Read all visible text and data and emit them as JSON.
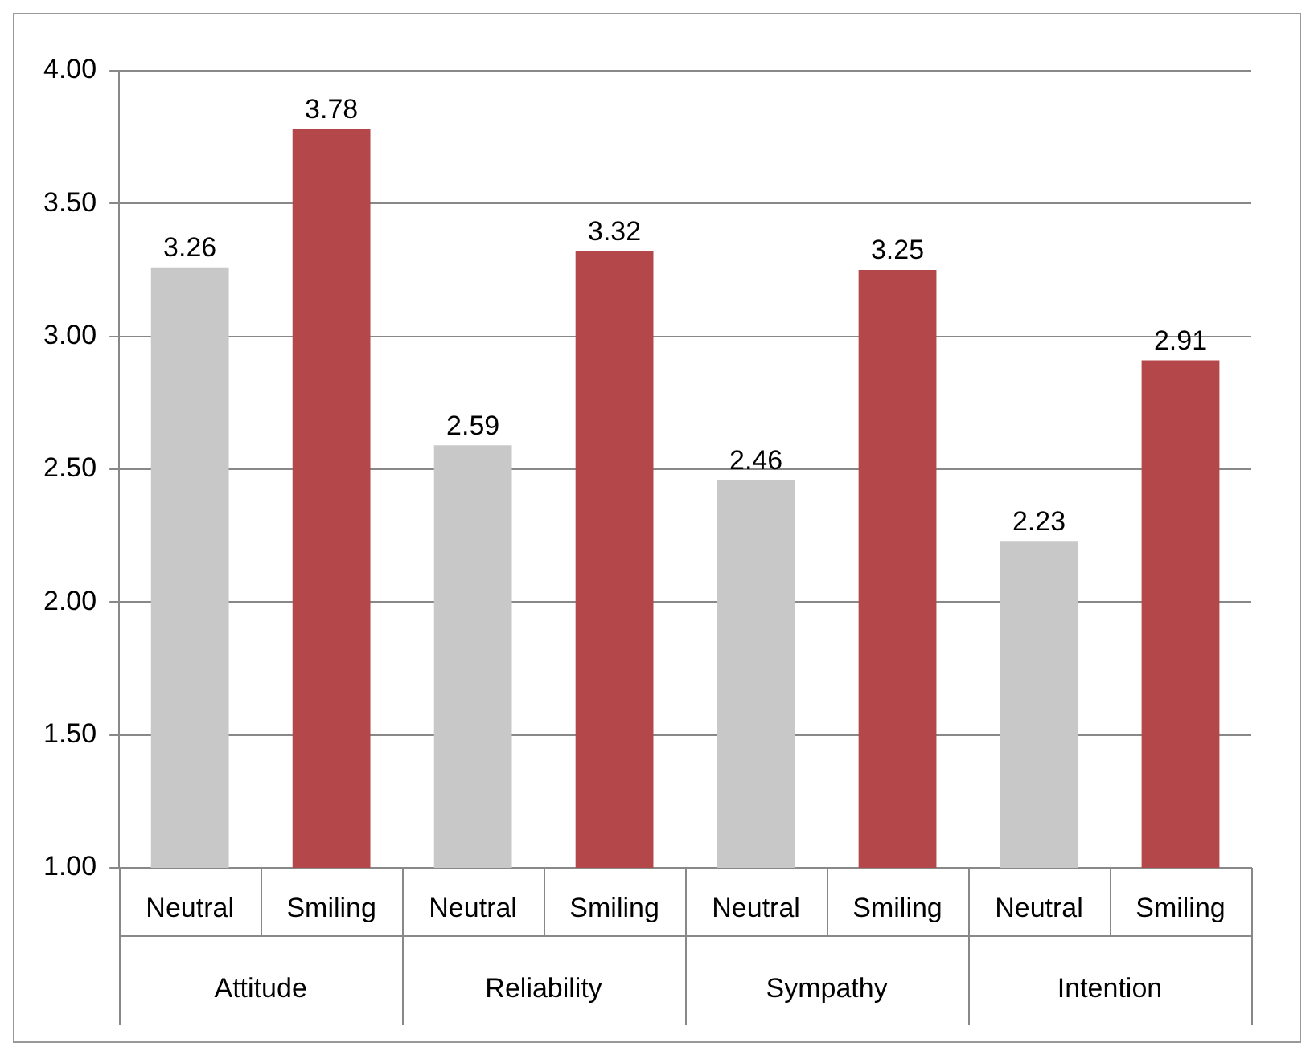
{
  "chart_data": {
    "type": "bar",
    "categories": [
      "Attitude",
      "Reliability",
      "Sympathy",
      "Intention"
    ],
    "series": [
      {
        "name": "Neutral",
        "color": "#c8c8c8",
        "values": [
          3.26,
          2.59,
          2.46,
          2.23
        ]
      },
      {
        "name": "Smiling",
        "color": "#b4474a",
        "values": [
          3.78,
          3.32,
          3.25,
          2.91
        ]
      }
    ],
    "ylim": [
      1,
      4
    ],
    "yticks": [
      {
        "value": 1,
        "label": "1.00"
      },
      {
        "value": 1.5,
        "label": "1.50"
      },
      {
        "value": 2,
        "label": "2.00"
      },
      {
        "value": 2.5,
        "label": "2.50"
      },
      {
        "value": 3,
        "label": "3.00"
      },
      {
        "value": 3.5,
        "label": "3.50"
      },
      {
        "value": 4,
        "label": "4.00"
      }
    ],
    "grid": "y",
    "data_labels": true
  }
}
